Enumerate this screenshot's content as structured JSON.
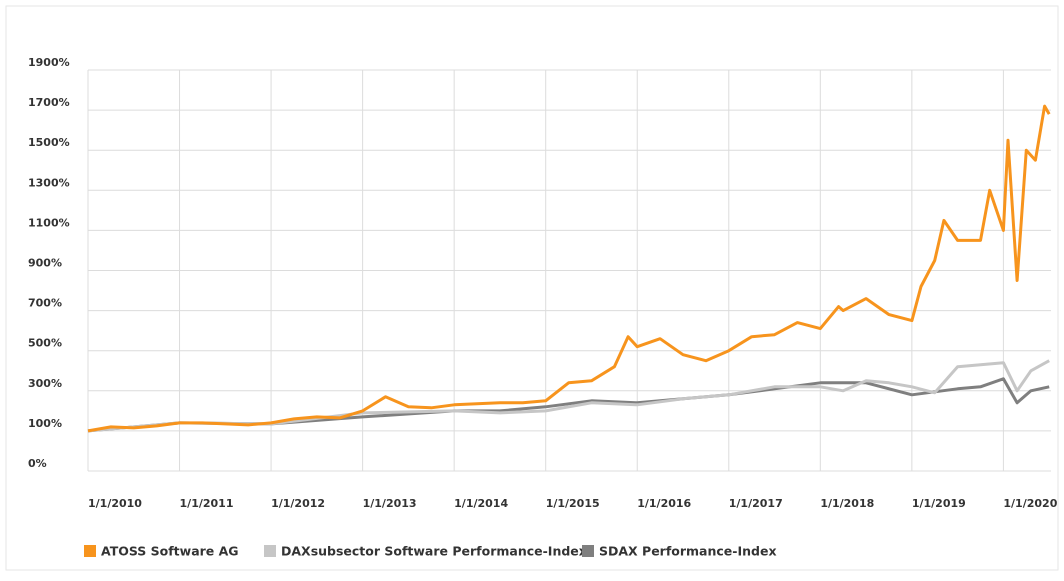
{
  "chart_data": {
    "type": "line",
    "series": [
      {
        "name": "ATOSS Software AG",
        "color": "#f7941d",
        "x": [
          2010,
          2010.25,
          2010.5,
          2010.75,
          2011,
          2011.25,
          2011.5,
          2011.75,
          2012,
          2012.25,
          2012.5,
          2012.75,
          2013,
          2013.25,
          2013.5,
          2013.75,
          2014,
          2014.25,
          2014.5,
          2014.75,
          2015,
          2015.25,
          2015.5,
          2015.75,
          2015.9,
          2016,
          2016.25,
          2016.5,
          2016.75,
          2017,
          2017.25,
          2017.5,
          2017.75,
          2018,
          2018.2,
          2018.25,
          2018.5,
          2018.75,
          2019,
          2019.1,
          2019.25,
          2019.35,
          2019.5,
          2019.75,
          2019.85,
          2020,
          2020.05,
          2020.15,
          2020.25,
          2020.35,
          2020.45,
          2020.5
        ],
        "values": [
          100,
          120,
          115,
          125,
          140,
          140,
          135,
          130,
          140,
          160,
          170,
          165,
          200,
          270,
          220,
          215,
          230,
          235,
          240,
          240,
          250,
          340,
          350,
          420,
          570,
          520,
          560,
          480,
          450,
          500,
          570,
          580,
          640,
          610,
          720,
          700,
          760,
          680,
          650,
          820,
          950,
          1150,
          1050,
          1050,
          1300,
          1100,
          1550,
          850,
          1500,
          1450,
          1720,
          1680
        ]
      },
      {
        "name": "DAXsubsector Software Performance-Index",
        "color": "#c6c6c6",
        "x": [
          2010,
          2011,
          2012,
          2013,
          2014,
          2014.5,
          2015,
          2015.5,
          2016,
          2016.5,
          2017,
          2017.5,
          2018,
          2018.25,
          2018.5,
          2018.75,
          2019,
          2019.25,
          2019.5,
          2019.75,
          2020,
          2020.15,
          2020.3,
          2020.5
        ],
        "values": [
          100,
          140,
          135,
          190,
          200,
          190,
          200,
          240,
          230,
          260,
          280,
          320,
          320,
          300,
          350,
          340,
          320,
          290,
          420,
          430,
          440,
          300,
          400,
          450
        ]
      },
      {
        "name": "SDAX Performance-Index",
        "color": "#7f7f7f",
        "x": [
          2010,
          2011,
          2012,
          2013,
          2014,
          2014.5,
          2015,
          2015.5,
          2016,
          2016.5,
          2017,
          2017.5,
          2018,
          2018.5,
          2019,
          2019.5,
          2019.75,
          2020,
          2020.15,
          2020.3,
          2020.5
        ],
        "values": [
          100,
          140,
          135,
          170,
          200,
          200,
          220,
          250,
          240,
          260,
          280,
          310,
          340,
          340,
          280,
          310,
          320,
          360,
          240,
          300,
          320
        ]
      }
    ],
    "xlim": [
      2010,
      2020.52
    ],
    "xticks": [
      {
        "value": 2010,
        "label": "1/1/2010"
      },
      {
        "value": 2011,
        "label": "1/1/2011"
      },
      {
        "value": 2012,
        "label": "1/1/2012"
      },
      {
        "value": 2013,
        "label": "1/1/2013"
      },
      {
        "value": 2014,
        "label": "1/1/2014"
      },
      {
        "value": 2015,
        "label": "1/1/2015"
      },
      {
        "value": 2016,
        "label": "1/1/2016"
      },
      {
        "value": 2017,
        "label": "1/1/2017"
      },
      {
        "value": 2018,
        "label": "1/1/2018"
      },
      {
        "value": 2019,
        "label": "1/1/2019"
      },
      {
        "value": 2020,
        "label": "1/1/2020"
      }
    ],
    "ylim": [
      0,
      1900
    ],
    "yticks": [
      {
        "value": 0,
        "label": "0%"
      },
      {
        "value": 100,
        "label": "100%"
      },
      {
        "value": 300,
        "label": "300%"
      },
      {
        "value": 500,
        "label": "500%"
      },
      {
        "value": 700,
        "label": "700%"
      },
      {
        "value": 900,
        "label": "900%"
      },
      {
        "value": 1100,
        "label": "1100%"
      },
      {
        "value": 1300,
        "label": "1300%"
      },
      {
        "value": 1500,
        "label": "1500%"
      },
      {
        "value": 1700,
        "label": "1700%"
      },
      {
        "value": 1900,
        "label": "1900%"
      }
    ],
    "grid": true
  }
}
